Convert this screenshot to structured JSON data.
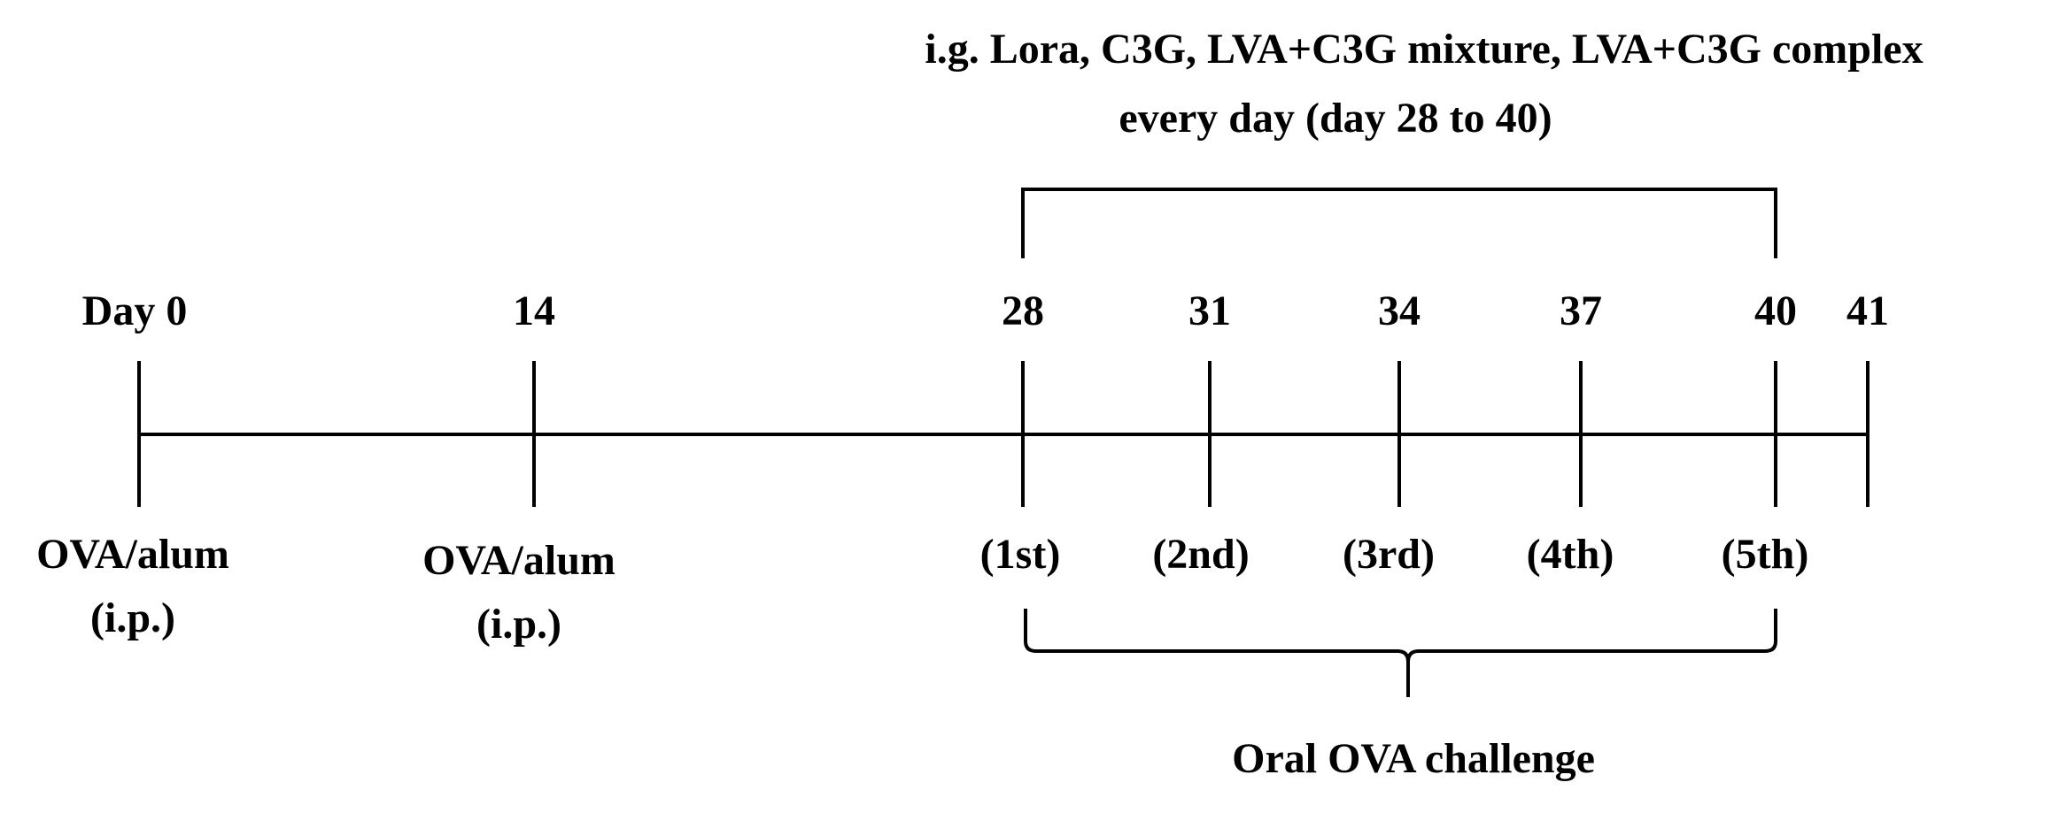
{
  "treatment": {
    "line1": "i.g. Lora, C3G, LVA+C3G mixture, LVA+C3G complex",
    "line2": "every day (day 28 to 40)"
  },
  "timeline": [
    {
      "day": "Day 0",
      "event": [
        "OVA/alum",
        "(i.p.)"
      ]
    },
    {
      "day": "14",
      "event": [
        "OVA/alum",
        "(i.p.)"
      ]
    },
    {
      "day": "28",
      "event": [
        "(1st)"
      ]
    },
    {
      "day": "31",
      "event": [
        "(2nd)"
      ]
    },
    {
      "day": "34",
      "event": [
        "(3rd)"
      ]
    },
    {
      "day": "37",
      "event": [
        "(4th)"
      ]
    },
    {
      "day": "40",
      "event": [
        "(5th)"
      ]
    },
    {
      "day": "41",
      "event": []
    }
  ],
  "challenge_label": "Oral OVA challenge"
}
